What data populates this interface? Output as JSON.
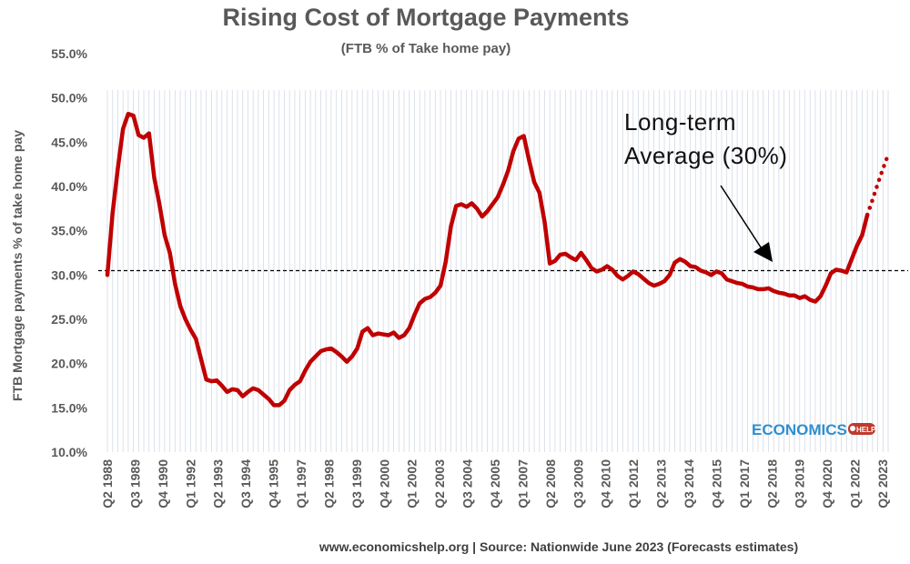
{
  "chart_data": {
    "type": "line",
    "title": "Rising Cost of Mortgage Payments",
    "subtitle": "(FTB % of Take home pay)",
    "ylabel": "FTB Mortgage payments % of take home pay",
    "xlabel": "",
    "ylim": [
      10,
      55
    ],
    "y_ticks": [
      "10.0%",
      "15.0%",
      "20.0%",
      "25.0%",
      "30.0%",
      "35.0%",
      "40.0%",
      "45.0%",
      "50.0%",
      "55.0%"
    ],
    "x_tick_labels": [
      "Q2 1988",
      "Q3 1989",
      "Q4 1990",
      "Q1 1992",
      "Q2 1993",
      "Q3 1994",
      "Q4 1995",
      "Q1 1997",
      "Q2 1998",
      "Q3 1999",
      "Q4 2000",
      "Q1 2002",
      "Q2 2003",
      "Q3 2004",
      "Q4 2005",
      "Q1 2007",
      "Q2 2008",
      "Q3 2009",
      "Q4 2010",
      "Q1 2012",
      "Q2 2013",
      "Q3 2014",
      "Q4 2015",
      "Q1 2017",
      "Q2 2018",
      "Q3 2019",
      "Q4 2020",
      "Q1 2022",
      "Q2 2023"
    ],
    "grid": "vertical",
    "series": [
      {
        "line_color": "#c00000",
        "style": "solid",
        "values": [
          30,
          37,
          42,
          46.5,
          48.2,
          48,
          45.8,
          45.5,
          46,
          41,
          38,
          34.5,
          32.5,
          29,
          26.5,
          25,
          23.8,
          22.8,
          20.5,
          18.2,
          18,
          18.1,
          17.5,
          16.8,
          17.1,
          17,
          16.3,
          16.8,
          17.2,
          17,
          16.5,
          16,
          15.3,
          15.3,
          15.8,
          17,
          17.6,
          18,
          19.2,
          20.2,
          20.8,
          21.4,
          21.6,
          21.7,
          21.3,
          20.8,
          20.2,
          20.8,
          21.7,
          23.6,
          24,
          23.2,
          23.4,
          23.3,
          23.2,
          23.5,
          22.9,
          23.2,
          24,
          25.5,
          26.8,
          27.3,
          27.5,
          28,
          28.8,
          31.5,
          35.5,
          37.8,
          38,
          37.7,
          38.1,
          37.5,
          36.6,
          37.2,
          38,
          38.8,
          40.2,
          41.8,
          44,
          45.4,
          45.7,
          43,
          40.5,
          39.3,
          36,
          31.3,
          31.6,
          32.3,
          32.4,
          32,
          31.7,
          32.5,
          31.7,
          30.8,
          30.4,
          30.6,
          31,
          30.6,
          29.9,
          29.5,
          29.9,
          30.4,
          30.1,
          29.6,
          29.1,
          28.8,
          29,
          29.3,
          30,
          31.4,
          31.8,
          31.5,
          31,
          30.9,
          30.5,
          30.3,
          30,
          30.4,
          30.2,
          29.5,
          29.3,
          29.1,
          29,
          28.7,
          28.6,
          28.4,
          28.4,
          28.5,
          28.2,
          28,
          27.9,
          27.7,
          27.7,
          27.4,
          27.6,
          27.2,
          27,
          27.6,
          28.8,
          30.2,
          30.6,
          30.5,
          30.3,
          31.8,
          33.3,
          34.5,
          36.8
        ]
      },
      {
        "line_color": "#c00000",
        "style": "dotted",
        "values": [
          36.8,
          38.5,
          40.3,
          42,
          43.6
        ]
      }
    ],
    "reference_line": {
      "value": 30.5,
      "style": "dashed",
      "color": "#000000"
    },
    "annotation": {
      "lines": [
        "Long-term",
        "Average (30%)"
      ],
      "arrow": true
    }
  },
  "source": "www.economicshelp.org | Source: Nationwide June 2023 (Forecasts estimates)",
  "logo": {
    "text": "ECONOMICS",
    "badge": "HELP"
  }
}
